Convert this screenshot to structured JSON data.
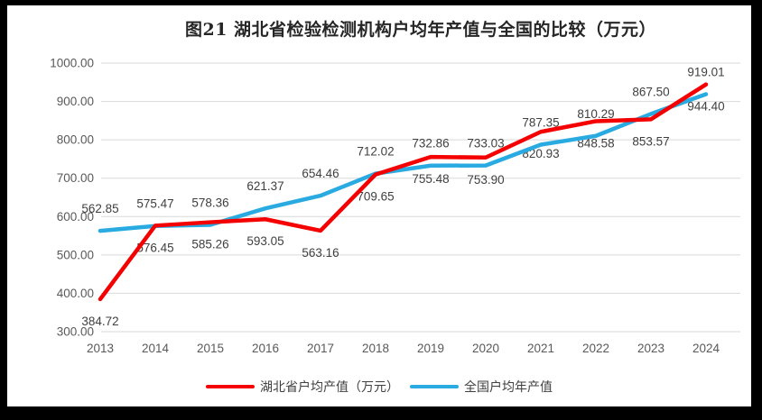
{
  "colors": {
    "outer_bg": "#000000",
    "frame_bg": "#FFFFFF",
    "gridline": "#D9D9D9",
    "axis_text": "#595959",
    "label_text": "#404040",
    "title_text": "#262626",
    "hubei_red": "#F40000",
    "national_blue": "#29ABE2"
  },
  "chart_data": {
    "type": "line",
    "title": "图21 湖北省检验检测机构户均年产值与全国的比较（万元）",
    "x": [
      "2013",
      "2014",
      "2015",
      "2016",
      "2017",
      "2018",
      "2019",
      "2020",
      "2021",
      "2022",
      "2023",
      "2024"
    ],
    "series": [
      {
        "name": "湖北省户均产值（万元）",
        "color": "#F40000",
        "label_position": "below",
        "values": [
          384.72,
          576.45,
          585.26,
          593.05,
          563.16,
          709.65,
          755.48,
          753.9,
          820.93,
          848.58,
          853.57,
          944.4
        ]
      },
      {
        "name": "全国户均年产值",
        "color": "#29ABE2",
        "label_position": "above",
        "values": [
          562.85,
          575.47,
          578.36,
          621.37,
          654.46,
          712.02,
          732.86,
          733.03,
          787.35,
          810.29,
          867.5,
          919.01
        ]
      }
    ],
    "ylim": [
      300,
      1000
    ],
    "yticks": [
      1000,
      900,
      800,
      700,
      600,
      500,
      400,
      300
    ],
    "value_decimals": 2,
    "grid": true,
    "legend_position": "bottom"
  }
}
